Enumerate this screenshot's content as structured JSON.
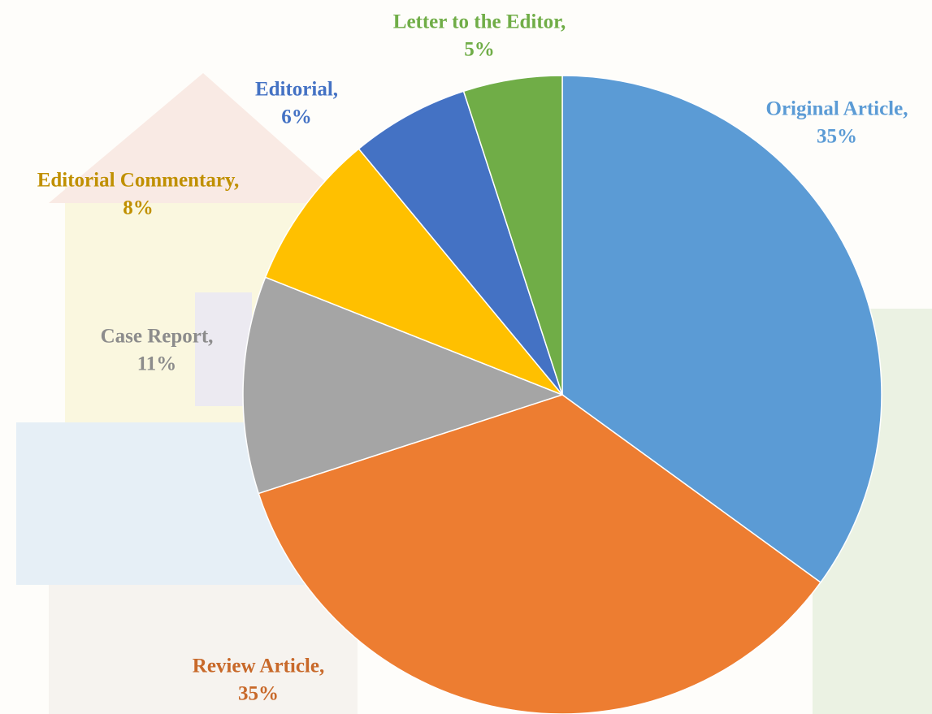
{
  "chart_data": {
    "type": "pie",
    "categories": [
      "Original Article,",
      "Review Article,",
      "Case Report,",
      "Editorial Commentary,",
      "Editorial,",
      "Letter to the Editor,"
    ],
    "values": [
      35,
      35,
      11,
      8,
      6,
      5
    ],
    "value_labels": [
      "35%",
      "35%",
      "11%",
      "8%",
      "6%",
      "5%"
    ],
    "colors": [
      "#5b9bd5",
      "#ed7d31",
      "#a5a5a5",
      "#ffc000",
      "#4472c4",
      "#70ad47"
    ],
    "label_colors": [
      "#5b9bd5",
      "#c8692a",
      "#8c8c8c",
      "#c09000",
      "#4472c4",
      "#70ad47"
    ]
  }
}
